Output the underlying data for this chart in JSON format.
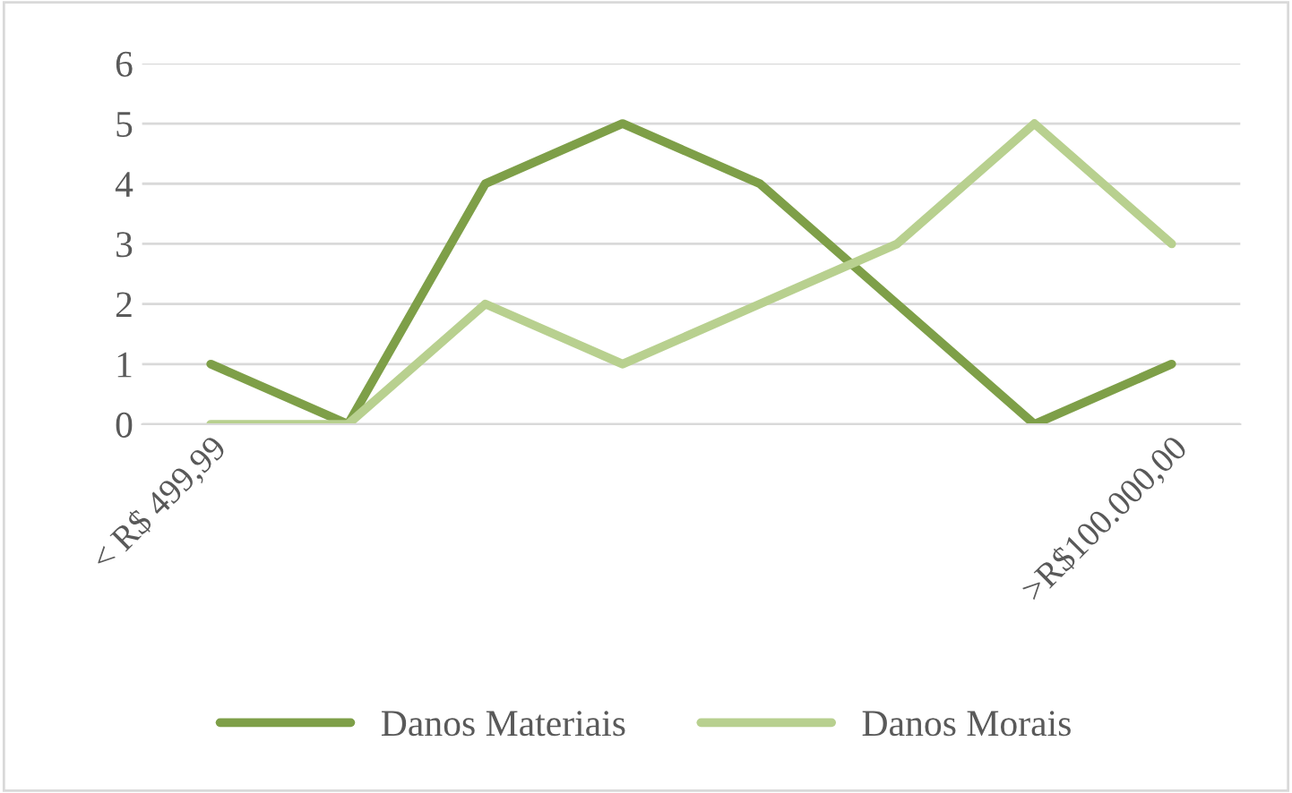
{
  "chart_data": {
    "type": "line",
    "categories": [
      "< R$ 499,99",
      null,
      null,
      null,
      null,
      null,
      null,
      ">R$100.000,00"
    ],
    "series": [
      {
        "name": "Danos Materiais",
        "color": "#7e9f48",
        "values": [
          1,
          0,
          4,
          5,
          4,
          2,
          0,
          1
        ]
      },
      {
        "name": "Danos Morais",
        "color": "#b8d08f",
        "values": [
          0,
          0,
          2,
          1,
          2,
          3,
          5,
          3
        ]
      }
    ],
    "ylim": [
      0,
      6
    ],
    "yticks": [
      0,
      1,
      2,
      3,
      4,
      5,
      6
    ],
    "grid": "y",
    "legend": "bottom",
    "marker": "none",
    "line_style": "solid"
  }
}
